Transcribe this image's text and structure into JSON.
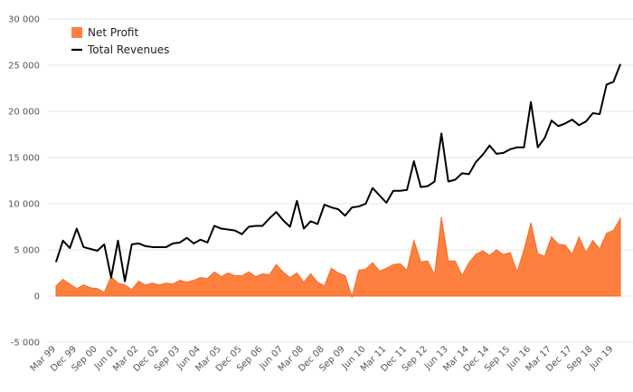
{
  "chart_data": {
    "type": "area",
    "title": "",
    "xlabel": "",
    "ylabel": "",
    "ylim": [
      -5000,
      30000
    ],
    "yticks": [
      -5000,
      0,
      5000,
      10000,
      15000,
      20000,
      25000,
      30000
    ],
    "ytick_labels": [
      "-5 000",
      "0",
      "5 000",
      "10 000",
      "15 000",
      "20 000",
      "25 000",
      "30 000"
    ],
    "grid": true,
    "legend_position": "top-left",
    "x": [
      "Mar 99",
      "Jun 99",
      "Sep 99",
      "Dec 99",
      "Mar 00",
      "Jun 00",
      "Sep 00",
      "Dec 00",
      "Mar 01",
      "Jun 01",
      "Sep 01",
      "Dec 01",
      "Mar 02",
      "Jun 02",
      "Sep 02",
      "Dec 02",
      "Mar 03",
      "Jun 03",
      "Sep 03",
      "Dec 03",
      "Mar 04",
      "Jun 04",
      "Sep 04",
      "Dec 04",
      "Mar 05",
      "Jun 05",
      "Sep 05",
      "Dec 05",
      "Mar 06",
      "Jun 06",
      "Sep 06",
      "Dec 06",
      "Mar 07",
      "Jun 07",
      "Sep 07",
      "Dec 07",
      "Mar 08",
      "Jun 08",
      "Sep 08",
      "Dec 08",
      "Mar 09",
      "Jun 09",
      "Sep 09",
      "Dec 09",
      "Mar 10",
      "Jun 10",
      "Sep 10",
      "Dec 10",
      "Mar 11",
      "Jun 11",
      "Sep 11",
      "Dec 11",
      "Mar 12",
      "Jun 12",
      "Sep 12",
      "Dec 12",
      "Mar 13",
      "Jun 13",
      "Sep 13",
      "Dec 13",
      "Mar 14",
      "Jun 14",
      "Sep 14",
      "Dec 14",
      "Mar 15",
      "Jun 15",
      "Sep 15",
      "Dec 15",
      "Mar 16",
      "Jun 16",
      "Sep 16",
      "Dec 16",
      "Mar 17",
      "Jun 17",
      "Sep 17",
      "Dec 17",
      "Mar 18",
      "Jun 18",
      "Sep 18",
      "Dec 18",
      "Mar 19",
      "Jun 19",
      "Sep 19"
    ],
    "x_tick_labels": [
      "Mar 99",
      "Dec 99",
      "Sep 00",
      "Jun 01",
      "Mar 02",
      "Dec 02",
      "Sep 03",
      "Jun 04",
      "Mar 05",
      "Dec 05",
      "Sep 06",
      "Jun 07",
      "Mar 08",
      "Dec 08",
      "Sep 09",
      "Jun 10",
      "Mar 11",
      "Dec 11",
      "Sep 12",
      "Jun 13",
      "Mar 14",
      "Dec 14",
      "Sep 15",
      "Jun 16",
      "Mar 17",
      "Dec 17",
      "Sep 18",
      "Jun 19"
    ],
    "series": [
      {
        "name": "Net Profit",
        "type": "area",
        "color": "#ff7f3f",
        "values": [
          1100,
          1800,
          1300,
          800,
          1200,
          900,
          800,
          400,
          2100,
          1400,
          1200,
          700,
          1600,
          1200,
          1400,
          1200,
          1400,
          1300,
          1700,
          1500,
          1700,
          2000,
          1900,
          2600,
          2100,
          2500,
          2200,
          2200,
          2600,
          2100,
          2400,
          2300,
          3400,
          2600,
          2000,
          2500,
          1500,
          2400,
          1500,
          1100,
          3000,
          2500,
          2200,
          -100,
          2800,
          2900,
          3600,
          2700,
          3000,
          3400,
          3500,
          2800,
          6000,
          3700,
          3800,
          2300,
          8500,
          3800,
          3800,
          2200,
          3600,
          4500,
          4900,
          4400,
          5000,
          4500,
          4700,
          2600,
          5000,
          7900,
          4600,
          4300,
          6400,
          5600,
          5500,
          4500,
          6400,
          4700,
          6000,
          5100,
          6800,
          7100,
          8400
        ]
      },
      {
        "name": "Total Revenues",
        "type": "line",
        "color": "#000000",
        "values": [
          3700,
          6000,
          5200,
          7300,
          5300,
          5100,
          4900,
          5600,
          2000,
          6000,
          1600,
          5600,
          5700,
          5400,
          5300,
          5300,
          5300,
          5700,
          5800,
          6300,
          5700,
          6100,
          5800,
          7600,
          7300,
          7200,
          7100,
          6700,
          7500,
          7600,
          7600,
          8400,
          9100,
          8200,
          7500,
          10300,
          7300,
          8100,
          7800,
          9900,
          9600,
          9400,
          8700,
          9600,
          9700,
          10000,
          11700,
          10900,
          10100,
          11400,
          11400,
          11500,
          14600,
          11800,
          11900,
          12400,
          17600,
          12400,
          12600,
          13300,
          13200,
          14500,
          15300,
          16300,
          15400,
          15500,
          15900,
          16100,
          16100,
          21000,
          16100,
          17100,
          19000,
          18400,
          18700,
          19100,
          18500,
          18900,
          19800,
          19700,
          22900,
          23200,
          25100
        ]
      }
    ]
  }
}
